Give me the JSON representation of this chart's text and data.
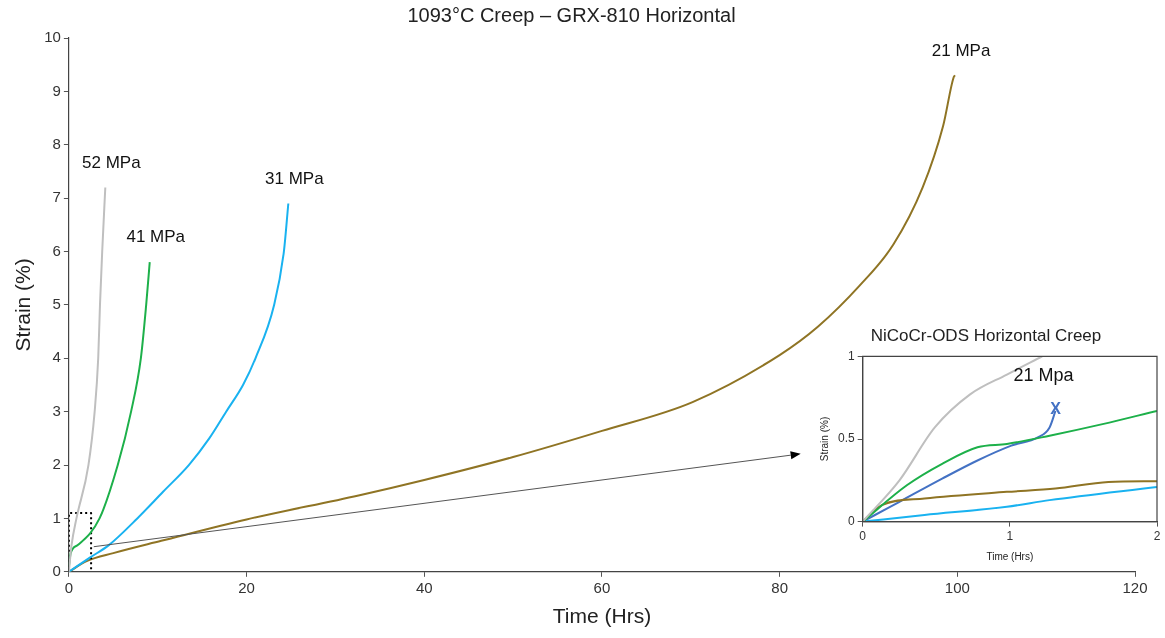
{
  "chart_data": [
    {
      "type": "line",
      "title": "1093°C Creep – GRX-810 Horizontal",
      "xlabel": "Time (Hrs)",
      "ylabel": "Strain (%)",
      "xlim": [
        0,
        120
      ],
      "xticks": [
        0,
        20,
        40,
        60,
        80,
        100,
        120
      ],
      "ylim": [
        0,
        10
      ],
      "yticks": [
        0,
        1,
        2,
        3,
        4,
        5,
        6,
        7,
        8,
        9,
        10
      ],
      "series": [
        {
          "name": "52 MPa",
          "color": "#bfbfbf",
          "x": [
            0,
            0.3,
            0.85,
            2.2,
            2.9,
            3.3,
            3.5,
            3.75,
            4.1
          ],
          "values": [
            0,
            0.5,
            1,
            2,
            3,
            4,
            5,
            6,
            7.2
          ]
        },
        {
          "name": "41 MPa",
          "color": "#1db04a",
          "x": [
            0,
            0.2,
            1,
            3.45,
            5.5,
            7,
            8.1,
            8.7,
            9.1
          ],
          "values": [
            0.1,
            0.35,
            0.5,
            1,
            2,
            3,
            4,
            5,
            5.8
          ]
        },
        {
          "name": "31 MPa",
          "color": "#19b2f0",
          "x": [
            0,
            2.4,
            4.5,
            7.7,
            10.6,
            13.5,
            15.8,
            17.7,
            19.6,
            21,
            23.1,
            24.2,
            24.7
          ],
          "values": [
            0,
            0.27,
            0.5,
            1,
            1.5,
            2,
            2.5,
            3,
            3.5,
            4,
            5,
            6,
            6.9
          ]
        },
        {
          "color": "#000000",
          "line_style": "dotted",
          "x": [
            0,
            0,
            2.5,
            2.5
          ],
          "values": [
            0,
            1.1,
            1.1,
            0
          ]
        },
        {
          "name": "21 MPa",
          "color": "#8f7424",
          "x": [
            0,
            2,
            5,
            10.4,
            20,
            32.6,
            40,
            50,
            60,
            70.2,
            80,
            84.3,
            89,
            92.8,
            96.1,
            98.4,
            99.6,
            99.75
          ],
          "values": [
            0,
            0.2,
            0.35,
            0.58,
            0.98,
            1.43,
            1.72,
            2.15,
            2.64,
            3.18,
            4.06,
            4.59,
            5.36,
            6.13,
            7.2,
            8.35,
            9.27,
            9.3
          ]
        }
      ]
    },
    {
      "type": "line",
      "title": "NiCoCr-ODS Horizontal Creep",
      "xlabel": "Time (Hrs)",
      "ylabel": "Strain (%)",
      "xlim": [
        0,
        2
      ],
      "xticks": [
        0,
        1,
        2
      ],
      "ylim": [
        0,
        1
      ],
      "yticks": [
        0,
        0.5,
        1
      ],
      "annotations": [
        {
          "text": "X",
          "x": 1.31,
          "y": 0.68
        }
      ],
      "series": [
        {
          "color": "#bfbfbf",
          "x": [
            0,
            0.25,
            0.49,
            0.73,
            0.98,
            1.22
          ],
          "values": [
            0,
            0.25,
            0.57,
            0.77,
            0.89,
            1
          ]
        },
        {
          "color": "#1db04a",
          "x": [
            0,
            0.3,
            0.54,
            0.78,
            0.98,
            1.27,
            1.63,
            2
          ],
          "values": [
            0,
            0.22,
            0.35,
            0.45,
            0.47,
            0.52,
            0.59,
            0.67
          ]
        },
        {
          "color": "#8f7424",
          "x": [
            0,
            0.13,
            0.42,
            0.98,
            1.31,
            1.67,
            2
          ],
          "values": [
            0,
            0.1,
            0.14,
            0.18,
            0.2,
            0.24,
            0.245
          ]
        },
        {
          "color": "#19b2f0",
          "x": [
            0,
            0.42,
            0.98,
            1.27,
            2
          ],
          "values": [
            0,
            0.04,
            0.09,
            0.13,
            0.21
          ]
        },
        {
          "name": "21 Mpa",
          "color": "#4472c4",
          "x": [
            0,
            0.25,
            0.54,
            0.78,
            1.01,
            1.19,
            1.27,
            1.31
          ],
          "values": [
            0,
            0.12,
            0.26,
            0.37,
            0.46,
            0.51,
            0.57,
            0.67
          ]
        }
      ]
    }
  ]
}
